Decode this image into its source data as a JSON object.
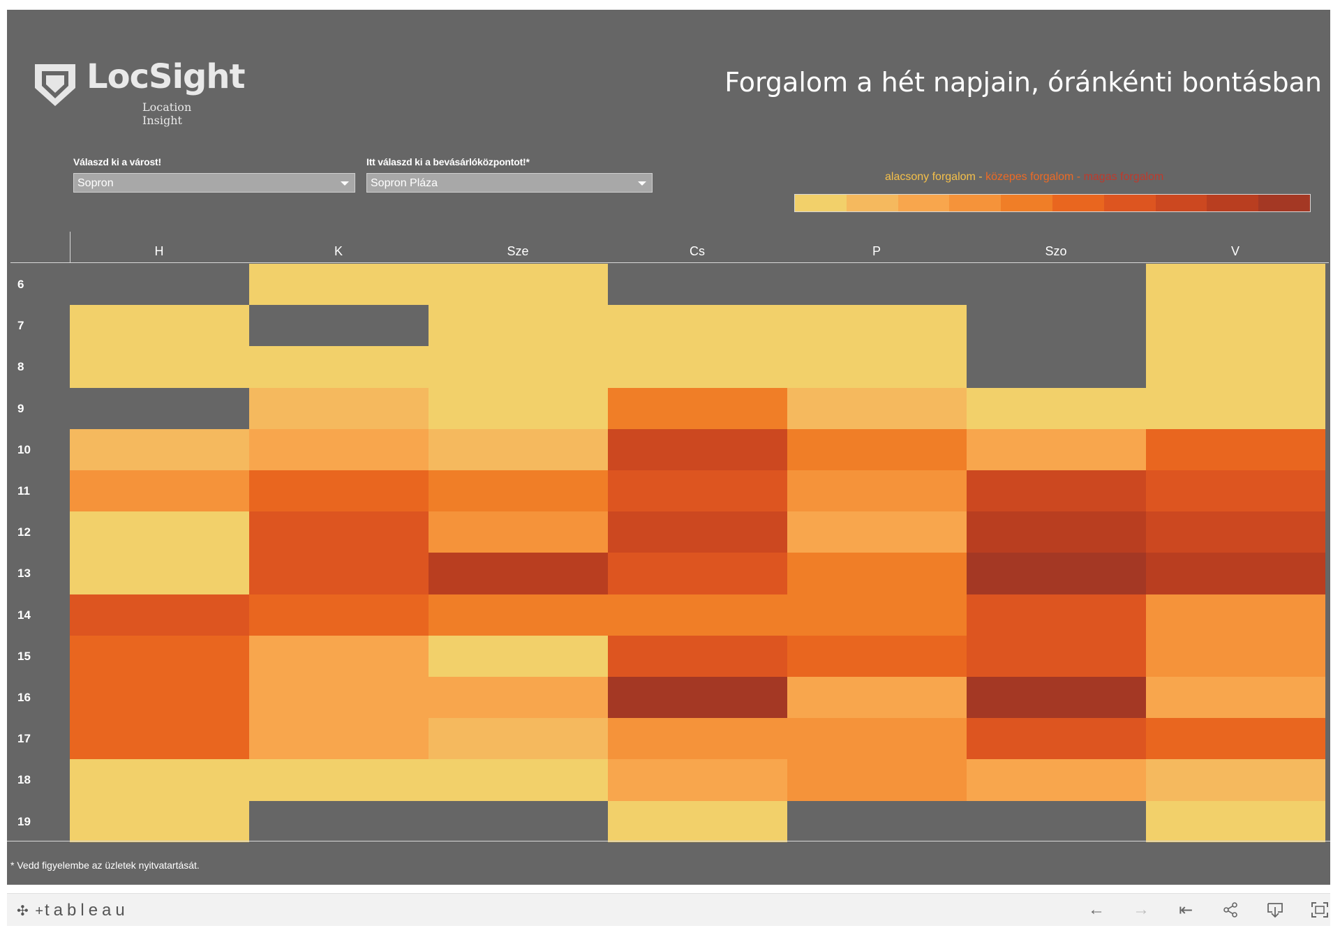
{
  "logo": {
    "name": "LocSight",
    "tagline": "Location Insight"
  },
  "title": "Forgalom a hét napjain, óránkénti bontásban",
  "filters": [
    {
      "label": "Válaszd ki a várost!",
      "value": "Sopron"
    },
    {
      "label": "Itt válaszd ki a bevásárlóközpontot!*",
      "value": "Sopron Pláza"
    }
  ],
  "legend": {
    "low": "alacsony forgalom",
    "mid": "közepes forgalom",
    "high": "magas forgalom",
    "separator": " - ",
    "low_color": "#f5c04a",
    "mid_color": "#ee6a24",
    "high_color": "#c0392b",
    "scale_colors": [
      "#f2d06a",
      "#f5b95e",
      "#f8a64d",
      "#f5933a",
      "#f07e27",
      "#e9661f",
      "#dd5520",
      "#cc4820",
      "#b93e20",
      "#a43824"
    ]
  },
  "chart_data": {
    "type": "heatmap",
    "x": [
      "H",
      "K",
      "Sze",
      "Cs",
      "P",
      "Szo",
      "V"
    ],
    "y": [
      "6",
      "7",
      "8",
      "9",
      "10",
      "11",
      "12",
      "13",
      "14",
      "15",
      "16",
      "17",
      "18",
      "19"
    ],
    "scale": {
      "min": 1,
      "max": 10,
      "note_null": "no data (closed)"
    },
    "values": [
      [
        null,
        1,
        1,
        null,
        null,
        null,
        1
      ],
      [
        1,
        null,
        1,
        1,
        1,
        null,
        1
      ],
      [
        1,
        1,
        1,
        1,
        1,
        null,
        1
      ],
      [
        null,
        2,
        1,
        5,
        2,
        1,
        1
      ],
      [
        2,
        3,
        2,
        8,
        5,
        3,
        6
      ],
      [
        4,
        6,
        5,
        7,
        4,
        8,
        7
      ],
      [
        1,
        7,
        4,
        8,
        3,
        9,
        8
      ],
      [
        1,
        7,
        9,
        7,
        5,
        10,
        9
      ],
      [
        7,
        6,
        5,
        5,
        5,
        7,
        4
      ],
      [
        6,
        3,
        1,
        7,
        6,
        7,
        4
      ],
      [
        6,
        3,
        3,
        10,
        3,
        10,
        3
      ],
      [
        6,
        3,
        2,
        4,
        4,
        7,
        6
      ],
      [
        1,
        1,
        1,
        3,
        4,
        3,
        2
      ],
      [
        1,
        null,
        null,
        1,
        null,
        null,
        1
      ]
    ]
  },
  "footnote": "* Vedd figyelembe az üzletek nyitvatartását.",
  "toolbar": {
    "brand": "tableau",
    "undo_icon": "←",
    "redo_icon": "→",
    "revert_icon": "⇤",
    "share_icon": "⋖",
    "download_icon": "⤓",
    "fullscreen_icon": "⛶"
  }
}
